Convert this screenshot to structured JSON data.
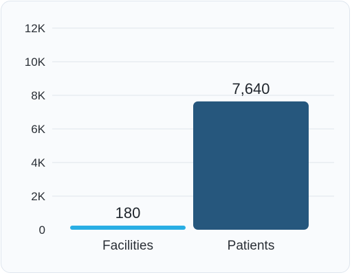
{
  "chart_data": {
    "type": "bar",
    "categories": [
      "Facilities",
      "Patients"
    ],
    "values": [
      180,
      7640
    ],
    "value_labels": [
      "180",
      "7,640"
    ],
    "colors": [
      "#29aee4",
      "#26577d"
    ],
    "ylim": [
      0,
      12000
    ],
    "yticks": [
      0,
      2000,
      4000,
      6000,
      8000,
      10000,
      12000
    ],
    "ytick_labels": [
      "0",
      "2K",
      "4K",
      "6K",
      "8K",
      "10K",
      "12K"
    ],
    "grid": true,
    "title": "",
    "xlabel": "",
    "ylabel": ""
  }
}
